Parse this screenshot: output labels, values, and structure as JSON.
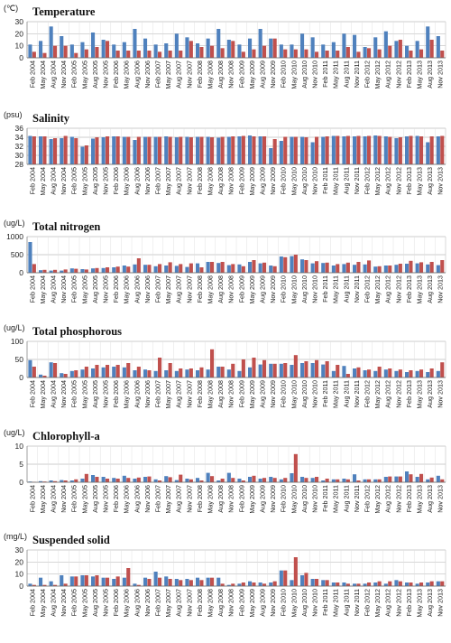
{
  "chart_data": [
    {
      "type": "bar",
      "title": "Temperature",
      "unit": "(℃)",
      "ylim": [
        0,
        30
      ],
      "yticks": [
        0,
        10,
        20,
        30
      ],
      "grid": true,
      "x_ticks": [
        "Feb 2004",
        "May 2004",
        "Aug 2004",
        "Nov 2004",
        "Feb 2005",
        "May 2005",
        "Aug 2005",
        "Nov 2005",
        "Feb 2006",
        "May 2006",
        "Aug 2006",
        "Nov 2006",
        "Feb 2007",
        "May 2007",
        "Aug 2007",
        "Nov 2007",
        "Feb 2008",
        "May 2008",
        "Aug 2008",
        "Nov 2008",
        "Feb 2009",
        "May 2009",
        "Aug 2009",
        "Nov 2009",
        "Feb 2010",
        "May 2010",
        "Aug 2010",
        "Nov 2010",
        "Feb 2011",
        "May 2011",
        "Aug 2011",
        "Nov 2011",
        "Feb 2012",
        "May 2012",
        "Aug 2012",
        "Nov 2012",
        "Feb 2013",
        "May 2013",
        "Aug 2013",
        "Nov 2013"
      ],
      "series": [
        {
          "color": "#4f81bd",
          "values": [
            11,
            14,
            26,
            18,
            11,
            13,
            21,
            15,
            11,
            13,
            24,
            16,
            11,
            12,
            20,
            17,
            12,
            16,
            24,
            15,
            11,
            16,
            24,
            16,
            11,
            11,
            20,
            17,
            11,
            13,
            20,
            19,
            9,
            17,
            22,
            14,
            10,
            14,
            26,
            18
          ]
        },
        {
          "color": "#c0504d",
          "values": [
            5,
            4,
            10,
            10,
            4,
            7,
            9,
            14,
            6,
            6,
            6,
            6,
            5,
            6,
            6,
            14,
            9,
            10,
            8,
            14,
            5,
            7,
            10,
            16,
            7,
            7,
            7,
            5,
            6,
            6,
            9,
            5,
            8,
            7,
            10,
            15,
            6,
            7,
            15,
            6
          ]
        }
      ]
    },
    {
      "type": "bar",
      "title": "Salinity",
      "unit": "(psu)",
      "ylim": [
        28,
        36
      ],
      "yticks": [
        28,
        30,
        32,
        34,
        36
      ],
      "grid": true,
      "x_ticks": [
        "Feb 2004",
        "May 2004",
        "Aug 2004",
        "Nov 2004",
        "Feb 2005",
        "May 2005",
        "Aug 2005",
        "Nov 2005",
        "Feb 2006",
        "May 2006",
        "Aug 2006",
        "Nov 2006",
        "Feb 2007",
        "May 2007",
        "Aug 2007",
        "Nov 2007",
        "Feb 2008",
        "May 2008",
        "Aug 2008",
        "Nov 2008",
        "Feb 2009",
        "May 2009",
        "Aug 2009",
        "Nov 2009",
        "Feb 2010",
        "May 2010",
        "Aug 2010",
        "Nov 2010",
        "Feb 2011",
        "May 2011",
        "Aug 2011",
        "Nov 2011",
        "Feb 2012",
        "May 2012",
        "Aug 2012",
        "Nov 2012",
        "Feb 2013",
        "May 2013",
        "Aug 2013",
        "Nov 2013"
      ],
      "series": [
        {
          "color": "#4f81bd",
          "values": [
            34.3,
            34.2,
            33.6,
            33.8,
            34.1,
            31.9,
            33.7,
            34.0,
            34.2,
            34.1,
            33.4,
            34.1,
            34.1,
            34.2,
            34.0,
            34.1,
            34.1,
            34.1,
            33.9,
            34.1,
            34.2,
            34.4,
            34.2,
            31.6,
            33.2,
            34.1,
            34.1,
            32.9,
            34.1,
            34.3,
            34.2,
            34.2,
            34.2,
            34.4,
            34.2,
            33.8,
            34.2,
            34.3,
            32.9,
            34.2
          ]
        },
        {
          "color": "#c0504d",
          "values": [
            34.2,
            34.2,
            33.8,
            34.3,
            33.8,
            32.2,
            34.0,
            34.2,
            34.2,
            34.1,
            34.1,
            34.1,
            34.1,
            34.1,
            34.1,
            34.0,
            34.1,
            34.0,
            34.1,
            34.2,
            34.3,
            34.2,
            34.2,
            33.6,
            34.1,
            34.1,
            34.0,
            34.1,
            34.2,
            34.3,
            34.3,
            34.3,
            34.3,
            34.3,
            34.1,
            34.0,
            34.3,
            34.2,
            34.2,
            34.3
          ]
        }
      ]
    },
    {
      "type": "bar",
      "title": "Total nitrogen",
      "unit": "(ug/L)",
      "ylim": [
        0,
        1000
      ],
      "yticks": [
        0,
        500,
        1000
      ],
      "grid": true,
      "x_ticks": [
        "Feb 2004",
        "May 2004",
        "Aug 2004",
        "Nov 2004",
        "Feb 2005",
        "May 2005",
        "Aug 2005",
        "Nov 2005",
        "Feb 2006",
        "May 2006",
        "Aug 2006",
        "Nov 2006",
        "Feb 2007",
        "May 2007",
        "Aug 2007",
        "Nov 2007",
        "Feb 2008",
        "May 2008",
        "Aug 2008",
        "Nov 2008",
        "Feb 2009",
        "May 2009",
        "Aug 2009",
        "Nov 2009",
        "Feb 2010",
        "May 2010",
        "Aug 2010",
        "Nov 2010",
        "Feb 2011",
        "May 2011",
        "Aug 2011",
        "Nov 2011",
        "Feb 2012",
        "May 2012",
        "Aug 2012",
        "Nov 2012",
        "Feb 2013",
        "May 2013",
        "Aug 2013",
        "Nov 2013"
      ],
      "series": [
        {
          "color": "#4f81bd",
          "values": [
            850,
            70,
            60,
            60,
            120,
            100,
            120,
            130,
            150,
            200,
            230,
            220,
            180,
            200,
            190,
            160,
            260,
            300,
            270,
            210,
            230,
            300,
            260,
            200,
            450,
            460,
            370,
            260,
            270,
            200,
            240,
            220,
            230,
            170,
            200,
            220,
            250,
            260,
            230,
            210
          ]
        },
        {
          "color": "#c0504d",
          "values": [
            240,
            80,
            80,
            90,
            110,
            90,
            130,
            150,
            170,
            170,
            400,
            220,
            240,
            290,
            240,
            260,
            150,
            300,
            300,
            240,
            180,
            350,
            280,
            180,
            430,
            500,
            350,
            320,
            280,
            240,
            280,
            300,
            340,
            180,
            200,
            250,
            330,
            290,
            300,
            350
          ]
        }
      ]
    },
    {
      "type": "bar",
      "title": "Total phosphorous",
      "unit": "(ug/L)",
      "ylim": [
        0,
        100
      ],
      "yticks": [
        0,
        50,
        100
      ],
      "grid": true,
      "x_ticks": [
        "Feb 2004",
        "May 2004",
        "Aug 2004",
        "Nov 2004",
        "Feb 2005",
        "May 2005",
        "Aug 2005",
        "Nov 2005",
        "Feb 2006",
        "May 2006",
        "Aug 2006",
        "Nov 2006",
        "Feb 2007",
        "May 2007",
        "Aug 2007",
        "Nov 2007",
        "Feb 2008",
        "May 2008",
        "Aug 2008",
        "Nov 2008",
        "Feb 2009",
        "May 2009",
        "Aug 2009",
        "Nov 2009",
        "Feb 2010",
        "May 2010",
        "Aug 2010",
        "Nov 2010",
        "Feb 2011",
        "May 2011",
        "Aug 2011",
        "Nov 2011",
        "Feb 2012",
        "May 2012",
        "Aug 2012",
        "Nov 2012",
        "Feb 2013",
        "May 2013",
        "Aug 2013",
        "Nov 2013"
      ],
      "series": [
        {
          "color": "#4f81bd",
          "values": [
            48,
            8,
            42,
            12,
            18,
            22,
            25,
            28,
            30,
            28,
            20,
            22,
            18,
            20,
            18,
            22,
            20,
            22,
            30,
            22,
            18,
            28,
            36,
            38,
            38,
            35,
            40,
            40,
            36,
            18,
            32,
            25,
            20,
            18,
            22,
            18,
            15,
            18,
            15,
            18
          ]
        },
        {
          "color": "#c0504d",
          "values": [
            30,
            5,
            40,
            10,
            20,
            30,
            35,
            35,
            35,
            40,
            30,
            20,
            55,
            40,
            25,
            25,
            28,
            78,
            30,
            38,
            50,
            55,
            48,
            38,
            40,
            62,
            45,
            48,
            45,
            35,
            10,
            28,
            22,
            30,
            25,
            22,
            20,
            22,
            25,
            42
          ]
        }
      ]
    },
    {
      "type": "bar",
      "title": "Chlorophyll-a",
      "unit": "(ug/L)",
      "ylim": [
        0,
        10
      ],
      "yticks": [
        0,
        5,
        10
      ],
      "grid": true,
      "x_ticks": [
        "Feb 2004",
        "May 2004",
        "Aug 2004",
        "Nov 2004",
        "Feb 2005",
        "May 2005",
        "Aug 2005",
        "Nov 2005",
        "Feb 2006",
        "May 2006",
        "Aug 2006",
        "Nov 2006",
        "Feb 2007",
        "May 2007",
        "Aug 2007",
        "Nov 2007",
        "Feb 2008",
        "May 2008",
        "Aug 2008",
        "Nov 2008",
        "Feb 2009",
        "May 2009",
        "Aug 2009",
        "Nov 2009",
        "Feb 2010",
        "May 2010",
        "Aug 2010",
        "Nov 2010",
        "Feb 2011",
        "May 2011",
        "Aug 2011",
        "Nov 2011",
        "Feb 2012",
        "May 2012",
        "Aug 2012",
        "Nov 2012",
        "Feb 2013",
        "May 2013",
        "Aug 2013",
        "Nov 2013"
      ],
      "series": [
        {
          "color": "#4f81bd",
          "values": [
            0.2,
            0.3,
            0.5,
            0.6,
            0.5,
            1.0,
            2.0,
            1.5,
            1.2,
            1.8,
            1.0,
            1.5,
            0.8,
            1.7,
            0.6,
            1.0,
            1.2,
            2.6,
            0.5,
            2.6,
            1.0,
            1.5,
            1.0,
            1.5,
            0.8,
            2.5,
            1.5,
            1.2,
            0.5,
            0.8,
            1.0,
            2.2,
            0.8,
            0.8,
            1.5,
            1.6,
            3.0,
            1.5,
            0.8,
            1.8
          ]
        },
        {
          "color": "#c0504d",
          "values": [
            0.1,
            0.2,
            0.3,
            0.5,
            0.8,
            2.3,
            1.5,
            1.0,
            1.0,
            1.2,
            1.3,
            1.6,
            0.5,
            1.4,
            2.1,
            0.8,
            0.5,
            1.7,
            1.0,
            1.2,
            0.5,
            1.8,
            1.2,
            1.2,
            1.2,
            7.8,
            1.2,
            1.5,
            1.0,
            0.8,
            0.8,
            0.5,
            0.8,
            0.8,
            1.6,
            1.6,
            2.2,
            2.3,
            1.3,
            0.8
          ]
        }
      ]
    },
    {
      "type": "bar",
      "title": "Suspended solid",
      "unit": "(mg/L)",
      "ylim": [
        0,
        30
      ],
      "yticks": [
        0,
        10,
        20,
        30
      ],
      "grid": true,
      "x_ticks": [
        "Feb 2004",
        "May 2004",
        "Aug 2004",
        "Nov 2004",
        "Feb 2005",
        "May 2005",
        "Aug 2005",
        "Nov 2005",
        "Feb 2006",
        "May 2006",
        "Aug 2006",
        "Nov 2006",
        "Feb 2007",
        "May 2007",
        "Aug 2007",
        "Nov 2007",
        "Feb 2008",
        "May 2008",
        "Aug 2008",
        "Nov 2008",
        "Feb 2009",
        "May 2009",
        "Aug 2009",
        "Nov 2009",
        "Feb 2010",
        "May 2010",
        "Aug 2010",
        "Nov 2010",
        "Feb 2011",
        "May 2011",
        "Aug 2011",
        "Nov 2011",
        "Feb 2012",
        "May 2012",
        "Aug 2012",
        "Nov 2012",
        "Feb 2013",
        "May 2013",
        "Aug 2013",
        "Nov 2013"
      ],
      "series": [
        {
          "color": "#4f81bd",
          "values": [
            2,
            7,
            4,
            9,
            8,
            9,
            8,
            7,
            6,
            7,
            2,
            7,
            12,
            8,
            6,
            6,
            7,
            7,
            7,
            1,
            2,
            4,
            3,
            3,
            13,
            5,
            9,
            6,
            5,
            3,
            3,
            2,
            2,
            3,
            2,
            5,
            3,
            2,
            3,
            4
          ]
        },
        {
          "color": "#c0504d",
          "values": [
            1,
            1,
            1,
            2,
            8,
            9,
            9,
            7,
            8,
            15,
            1,
            6,
            7,
            6,
            5,
            5,
            5,
            7,
            2,
            2,
            3,
            3,
            2,
            4,
            13,
            24,
            11,
            6,
            5,
            3,
            2,
            2,
            3,
            4,
            4,
            4,
            3,
            3,
            4,
            4
          ]
        }
      ]
    }
  ]
}
